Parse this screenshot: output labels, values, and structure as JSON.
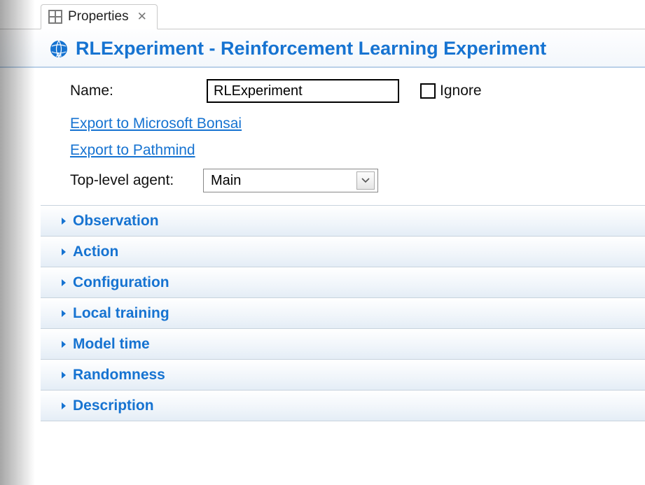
{
  "tab": {
    "label": "Properties"
  },
  "header": {
    "title": "RLExperiment - Reinforcement Learning Experiment"
  },
  "form": {
    "name_label": "Name:",
    "name_value": "RLExperiment",
    "ignore_label": "Ignore",
    "link_bonsai": "Export to Microsoft Bonsai",
    "link_pathmind": "Export to Pathmind",
    "agent_label": "Top-level agent:",
    "agent_value": "Main"
  },
  "sections": [
    {
      "label": "Observation"
    },
    {
      "label": "Action"
    },
    {
      "label": "Configuration"
    },
    {
      "label": "Local training"
    },
    {
      "label": "Model time"
    },
    {
      "label": "Randomness"
    },
    {
      "label": "Description"
    }
  ],
  "colors": {
    "accent": "#1673d1",
    "section_gradient_top": "#ffffff",
    "section_gradient_bottom": "#e4edf6",
    "border": "#c8d3dd"
  }
}
